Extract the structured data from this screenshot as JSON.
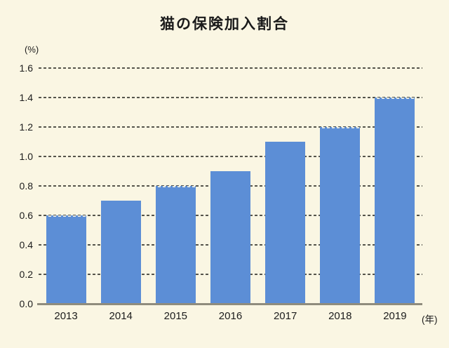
{
  "title": "猫の保険加入割合",
  "y_axis_unit": "(%)",
  "x_axis_unit": "(年)",
  "colors": {
    "background": "#FAF6E3",
    "bar": "#5C8ED6",
    "gridline": "#56554C",
    "axis_line": "#8F8C7D",
    "text": "#1C1C1C"
  },
  "chart_data": {
    "type": "bar",
    "title": "猫の保険加入割合",
    "categories": [
      "2013",
      "2014",
      "2015",
      "2016",
      "2017",
      "2018",
      "2019"
    ],
    "values": [
      0.6,
      0.7,
      0.8,
      0.9,
      1.1,
      1.2,
      1.4
    ],
    "xlabel": "(年)",
    "ylabel": "(%)",
    "ylim": [
      0,
      1.6
    ],
    "ytick_step": 0.2,
    "ytick_labels": [
      "0.0",
      "0.2",
      "0.4",
      "0.6",
      "0.8",
      "1.0",
      "1.2",
      "1.4",
      "1.6"
    ],
    "grid": "horizontal-dashed",
    "legend_position": "none"
  }
}
